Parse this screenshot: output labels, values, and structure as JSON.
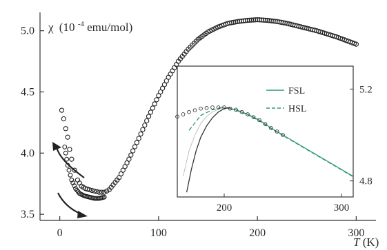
{
  "chart_data": [
    {
      "type": "scatter",
      "title": "",
      "ylabel_prefix": "χ",
      "ylabel_units": "(10",
      "ylabel_exp": "-4",
      "ylabel_tail": " emu/mol)",
      "xlabel_symbol": "T",
      "xlabel_units": " (K)",
      "xlim": [
        -20,
        320
      ],
      "ylim": [
        3.45,
        5.15
      ],
      "xticks": [
        0,
        100,
        200,
        300
      ],
      "yticks": [
        3.5,
        4.0,
        4.5,
        5.0
      ],
      "xtick_labels": [
        "0",
        "100",
        "200",
        "300"
      ],
      "ytick_labels": [
        "3.5",
        "4.0",
        "4.5",
        "5.0"
      ],
      "grid": false,
      "marker": "open-circle",
      "branches": {
        "cooling": {
          "x": [
            2,
            4,
            6,
            8,
            10,
            12,
            15,
            18,
            22,
            26,
            30,
            35,
            40,
            45,
            50,
            60,
            70,
            80,
            90,
            100,
            110,
            120,
            130,
            140,
            150,
            160,
            170,
            180,
            190,
            200,
            210,
            220,
            230,
            240,
            250,
            260,
            270,
            280,
            290,
            300
          ],
          "y": [
            4.35,
            4.28,
            4.2,
            4.13,
            4.03,
            3.95,
            3.86,
            3.78,
            3.73,
            3.71,
            3.7,
            3.69,
            3.68,
            3.68,
            3.7,
            3.8,
            3.95,
            4.12,
            4.3,
            4.47,
            4.62,
            4.75,
            4.85,
            4.93,
            4.99,
            5.03,
            5.06,
            5.075,
            5.085,
            5.09,
            5.085,
            5.075,
            5.06,
            5.04,
            5.02,
            5.0,
            4.975,
            4.95,
            4.92,
            4.89
          ]
        },
        "warming": {
          "x": [
            5,
            8,
            12,
            16,
            20,
            25,
            30,
            35,
            40,
            45
          ],
          "y": [
            4.05,
            3.9,
            3.78,
            3.71,
            3.67,
            3.65,
            3.64,
            3.63,
            3.63,
            3.64
          ]
        }
      },
      "arrows": [
        {
          "direction": "up",
          "note": "warming"
        },
        {
          "direction": "down",
          "note": "cooling"
        }
      ]
    },
    {
      "type": "line",
      "inset": true,
      "xlim": [
        160,
        310
      ],
      "ylim": [
        4.73,
        5.3
      ],
      "xticks": [
        200,
        300
      ],
      "xtick_labels": [
        "200",
        "300"
      ],
      "yticks": [
        4.8,
        5.2
      ],
      "ytick_labels": [
        "4.8",
        "5.2"
      ],
      "legend_position": "top-right",
      "legend": [
        {
          "label": "FSL",
          "style": "solid",
          "color": "#2e9a6e"
        },
        {
          "label": "HSL",
          "style": "dashed",
          "color": "#2e9a6e"
        }
      ],
      "points": {
        "x": [
          160,
          170,
          180,
          190,
          200,
          210,
          220,
          230,
          240,
          250,
          260,
          270,
          280,
          290,
          300,
          310
        ],
        "y": [
          5.08,
          5.1,
          5.115,
          5.12,
          5.12,
          5.11,
          5.09,
          5.065,
          5.03,
          5.0,
          4.97,
          4.94,
          4.91,
          4.88,
          4.85,
          4.82
        ]
      },
      "series": [
        {
          "name": "FSL",
          "style": "solid",
          "color": "#2e9a6e",
          "x": [
            195,
            200,
            210,
            220,
            230,
            240,
            250,
            260,
            270,
            280,
            290,
            300,
            310
          ],
          "y": [
            5.118,
            5.12,
            5.11,
            5.09,
            5.065,
            5.03,
            5.0,
            4.97,
            4.94,
            4.91,
            4.88,
            4.85,
            4.82
          ]
        },
        {
          "name": "HSL",
          "style": "dashed",
          "color": "#2e9a6e",
          "x": [
            170,
            180,
            190,
            200,
            210,
            220,
            230,
            240,
            250,
            260,
            270,
            280,
            290,
            300,
            310
          ],
          "y": [
            5.02,
            5.085,
            5.11,
            5.12,
            5.108,
            5.088,
            5.062,
            5.028,
            4.998,
            4.968,
            4.938,
            4.908,
            4.878,
            4.848,
            4.818
          ]
        },
        {
          "style": "thin-solid",
          "color": "#bbbbbb",
          "x": [
            165,
            170,
            175,
            180,
            185,
            190,
            195,
            200,
            205
          ],
          "y": [
            4.82,
            4.93,
            5.0,
            5.05,
            5.08,
            5.1,
            5.112,
            5.12,
            5.12
          ]
        },
        {
          "style": "solid",
          "color": "#333333",
          "x": [
            168,
            172,
            176,
            180,
            185,
            190,
            195,
            200,
            205
          ],
          "y": [
            4.75,
            4.85,
            4.93,
            4.99,
            5.04,
            5.075,
            5.1,
            5.115,
            5.12
          ]
        }
      ]
    }
  ]
}
